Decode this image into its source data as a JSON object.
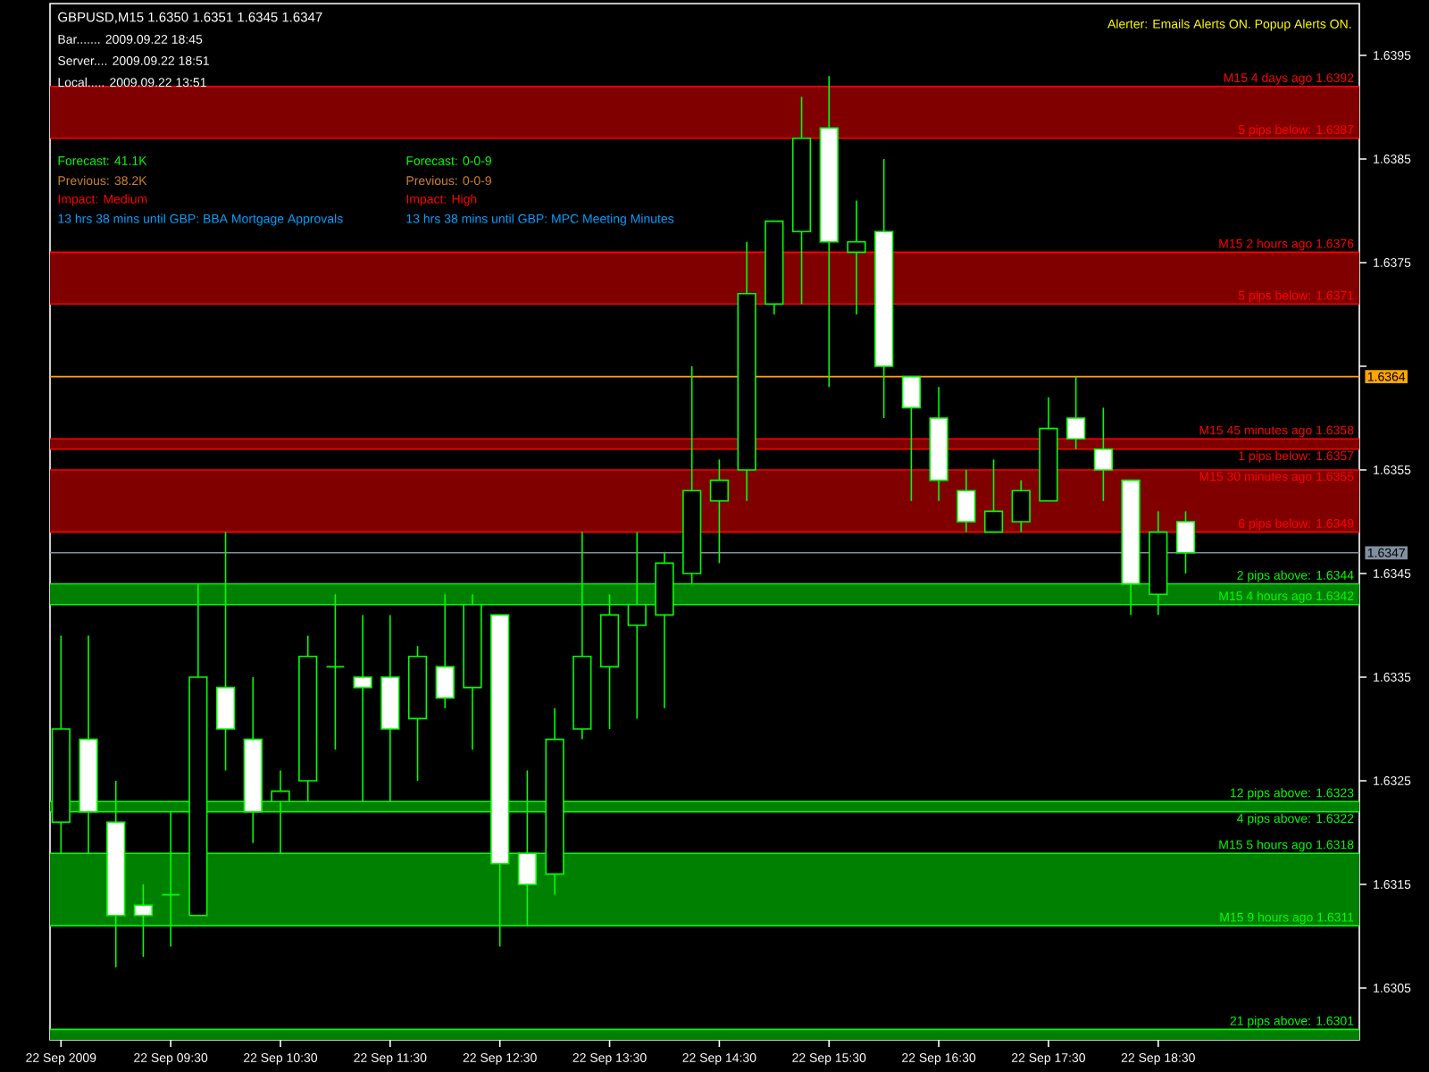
{
  "chart_data": {
    "type": "candlestick",
    "title": "GBPUSD,M15 1.6350 1.6351 1.6345 1.6347",
    "annotations": [
      "Bar....... 2009.09.22 18:45",
      "Server.... 2009.09.22 18:51",
      "Local..... 2009.09.22 13:51",
      "Alerter: Emails Alerts ON. Popup Alerts ON.",
      "Forecast: 41.1K",
      "Previous: 38.2K",
      "Impact: Medium",
      "13 hrs 38 mins until GBP: BBA Mortgage Approvals",
      "Forecast: 0-0-9",
      "Previous: 0-0-9",
      "Impact: High",
      "13 hrs 38 mins until GBP: MPC Meeting Minutes"
    ],
    "color": "#00ff00",
    "x": [
      "2009-09-22T08:30",
      "2009-09-22T08:45",
      "2009-09-22T09:00",
      "2009-09-22T09:15",
      "2009-09-22T09:30",
      "2009-09-22T09:45",
      "2009-09-22T10:00",
      "2009-09-22T10:15",
      "2009-09-22T10:30",
      "2009-09-22T10:45",
      "2009-09-22T11:00",
      "2009-09-22T11:15",
      "2009-09-22T11:30",
      "2009-09-22T11:45",
      "2009-09-22T12:00",
      "2009-09-22T12:15",
      "2009-09-22T12:30",
      "2009-09-22T12:45",
      "2009-09-22T13:00",
      "2009-09-22T13:15",
      "2009-09-22T13:30",
      "2009-09-22T13:45",
      "2009-09-22T14:00",
      "2009-09-22T14:15",
      "2009-09-22T14:30",
      "2009-09-22T14:45",
      "2009-09-22T15:00",
      "2009-09-22T15:15",
      "2009-09-22T15:30",
      "2009-09-22T15:45",
      "2009-09-22T16:00",
      "2009-09-22T16:15",
      "2009-09-22T16:30",
      "2009-09-22T16:45",
      "2009-09-22T17:00",
      "2009-09-22T17:15",
      "2009-09-22T17:30",
      "2009-09-22T17:45",
      "2009-09-22T18:00",
      "2009-09-22T18:15",
      "2009-09-22T18:30",
      "2009-09-22T18:45"
    ],
    "xlim": [
      "2009-09-22T08:24",
      "2009-09-22T20:20"
    ],
    "xticks": [
      {
        "value": "2009-09-22T08:30",
        "label": "22 Sep 2009"
      },
      {
        "value": "2009-09-22T09:30",
        "label": "22 Sep 09:30"
      },
      {
        "value": "2009-09-22T10:30",
        "label": "22 Sep 10:30"
      },
      {
        "value": "2009-09-22T11:30",
        "label": "22 Sep 11:30"
      },
      {
        "value": "2009-09-22T12:30",
        "label": "22 Sep 12:30"
      },
      {
        "value": "2009-09-22T13:30",
        "label": "22 Sep 13:30"
      },
      {
        "value": "2009-09-22T14:30",
        "label": "22 Sep 14:30"
      },
      {
        "value": "2009-09-22T15:30",
        "label": "22 Sep 15:30"
      },
      {
        "value": "2009-09-22T16:30",
        "label": "22 Sep 16:30"
      },
      {
        "value": "2009-09-22T17:30",
        "label": "22 Sep 17:30"
      },
      {
        "value": "2009-09-22T18:30",
        "label": "22 Sep 18:30"
      }
    ],
    "ohlc": [
      [
        1.6321,
        1.6339,
        1.6318,
        1.633
      ],
      [
        1.6329,
        1.6339,
        1.6318,
        1.6322
      ],
      [
        1.6321,
        1.6325,
        1.6307,
        1.6312
      ],
      [
        1.6313,
        1.6315,
        1.6308,
        1.6312
      ],
      [
        1.6314,
        1.6322,
        1.6309,
        1.6314
      ],
      [
        1.6312,
        1.6344,
        1.6312,
        1.6335
      ],
      [
        1.6334,
        1.6349,
        1.6326,
        1.633
      ],
      [
        1.6329,
        1.6335,
        1.6319,
        1.6322
      ],
      [
        1.6323,
        1.6326,
        1.6318,
        1.6324
      ],
      [
        1.6325,
        1.6339,
        1.6323,
        1.6337
      ],
      [
        1.6336,
        1.6343,
        1.6328,
        1.6336
      ],
      [
        1.6335,
        1.6341,
        1.6323,
        1.6334
      ],
      [
        1.6335,
        1.6341,
        1.6323,
        1.633
      ],
      [
        1.6331,
        1.6338,
        1.6325,
        1.6337
      ],
      [
        1.6336,
        1.6343,
        1.6332,
        1.6333
      ],
      [
        1.6334,
        1.6343,
        1.6328,
        1.6342
      ],
      [
        1.6341,
        1.6341,
        1.6309,
        1.6317
      ],
      [
        1.6318,
        1.6326,
        1.6311,
        1.6315
      ],
      [
        1.6316,
        1.6332,
        1.6314,
        1.6329
      ],
      [
        1.633,
        1.6349,
        1.6329,
        1.6337
      ],
      [
        1.6336,
        1.6343,
        1.633,
        1.6341
      ],
      [
        1.634,
        1.6349,
        1.6331,
        1.6342
      ],
      [
        1.6341,
        1.6347,
        1.6332,
        1.6346
      ],
      [
        1.6345,
        1.6365,
        1.6344,
        1.6353
      ],
      [
        1.6352,
        1.6356,
        1.6346,
        1.6354
      ],
      [
        1.6355,
        1.6377,
        1.6352,
        1.6372
      ],
      [
        1.6371,
        1.6379,
        1.637,
        1.6379
      ],
      [
        1.6378,
        1.6391,
        1.6371,
        1.6387
      ],
      [
        1.6388,
        1.6393,
        1.6363,
        1.6377
      ],
      [
        1.6376,
        1.6381,
        1.637,
        1.6377
      ],
      [
        1.6378,
        1.6385,
        1.636,
        1.6365
      ],
      [
        1.6364,
        1.6364,
        1.6352,
        1.6361
      ],
      [
        1.636,
        1.6363,
        1.6352,
        1.6354
      ],
      [
        1.6353,
        1.6355,
        1.6349,
        1.635
      ],
      [
        1.6349,
        1.6356,
        1.6349,
        1.6351
      ],
      [
        1.635,
        1.6354,
        1.6349,
        1.6353
      ],
      [
        1.6352,
        1.6362,
        1.6352,
        1.6359
      ],
      [
        1.636,
        1.6364,
        1.6357,
        1.6358
      ],
      [
        1.6357,
        1.6361,
        1.6352,
        1.6355
      ],
      [
        1.6354,
        1.6354,
        1.6341,
        1.6344
      ],
      [
        1.6343,
        1.6351,
        1.6341,
        1.6349
      ],
      [
        1.635,
        1.6351,
        1.6345,
        1.6347
      ]
    ],
    "ylim": [
      1.63,
      1.64
    ],
    "yticks": [
      {
        "value": 1.6305,
        "label": "1.6305"
      },
      {
        "value": 1.6315,
        "label": "1.6315"
      },
      {
        "value": 1.6325,
        "label": "1.6325"
      },
      {
        "value": 1.6335,
        "label": "1.6335"
      },
      {
        "value": 1.6345,
        "label": "1.6345"
      },
      {
        "value": 1.6355,
        "label": "1.6355"
      },
      {
        "value": 1.6365,
        "label": null
      },
      {
        "value": 1.6375,
        "label": "1.6375"
      },
      {
        "value": 1.6385,
        "label": "1.6385"
      },
      {
        "value": 1.6395,
        "label": "1.6395"
      }
    ],
    "bands": [
      {
        "axis": "y",
        "from": 1.6387,
        "to": 1.6392,
        "color": "#800000"
      },
      {
        "axis": "y",
        "from": 1.6371,
        "to": 1.6376,
        "color": "#800000"
      },
      {
        "axis": "y",
        "from": 1.6357,
        "to": 1.6358,
        "color": "#800000"
      },
      {
        "axis": "y",
        "from": 1.6349,
        "to": 1.6355,
        "color": "#800000"
      },
      {
        "axis": "y",
        "from": 1.6342,
        "to": 1.6344,
        "color": "#008000"
      },
      {
        "axis": "y",
        "from": 1.6322,
        "to": 1.6323,
        "color": "#008000"
      },
      {
        "axis": "y",
        "from": 1.6311,
        "to": 1.6318,
        "color": "#008000"
      },
      {
        "axis": "y",
        "from": 1.63,
        "to": 1.6301,
        "color": "#008000"
      }
    ],
    "ref_lines": [
      {
        "axis": "y",
        "value": 1.6392,
        "label": "M15 4 days ago 1.6392",
        "color": "#ff0000"
      },
      {
        "axis": "y",
        "value": 1.6387,
        "label": "5 pips below: 1.6387",
        "color": "#ff0000"
      },
      {
        "axis": "y",
        "value": 1.6376,
        "label": "M15 2 hours ago 1.6376",
        "color": "#ff0000"
      },
      {
        "axis": "y",
        "value": 1.6371,
        "label": "5 pips below: 1.6371",
        "color": "#ff0000"
      },
      {
        "axis": "y",
        "value": 1.6364,
        "label": "1.6364",
        "color": "#ffa500"
      },
      {
        "axis": "y",
        "value": 1.6358,
        "label": "M15 45 minutes ago 1.6358",
        "color": "#ff0000"
      },
      {
        "axis": "y",
        "value": 1.6357,
        "label": "1 pips below: 1.6357",
        "color": "#ff0000"
      },
      {
        "axis": "y",
        "value": 1.6355,
        "label": "M15 30 minutes ago 1.6355",
        "color": "#ff0000"
      },
      {
        "axis": "y",
        "value": 1.6349,
        "label": "6 pips below: 1.6349",
        "color": "#ff0000"
      },
      {
        "axis": "y",
        "value": 1.6347,
        "label": "1.6347",
        "color": "#8090a0"
      },
      {
        "axis": "y",
        "value": 1.6344,
        "label": "2 pips above: 1.6344",
        "color": "#00ff00"
      },
      {
        "axis": "y",
        "value": 1.6342,
        "label": "M15 4 hours ago 1.6342",
        "color": "#00ff00"
      },
      {
        "axis": "y",
        "value": 1.6323,
        "label": "12 pips above: 1.6323",
        "color": "#00ff00"
      },
      {
        "axis": "y",
        "value": 1.6322,
        "label": "4 pips above: 1.6322",
        "color": "#00ff00"
      },
      {
        "axis": "y",
        "value": 1.6318,
        "label": "M15 5 hours ago 1.6318",
        "color": "#00ff00"
      },
      {
        "axis": "y",
        "value": 1.6311,
        "label": "M15 9 hours ago 1.6311",
        "color": "#00ff00"
      },
      {
        "axis": "y",
        "value": 1.6301,
        "label": "21 pips above: 1.6301",
        "color": "#00ff00"
      }
    ]
  }
}
